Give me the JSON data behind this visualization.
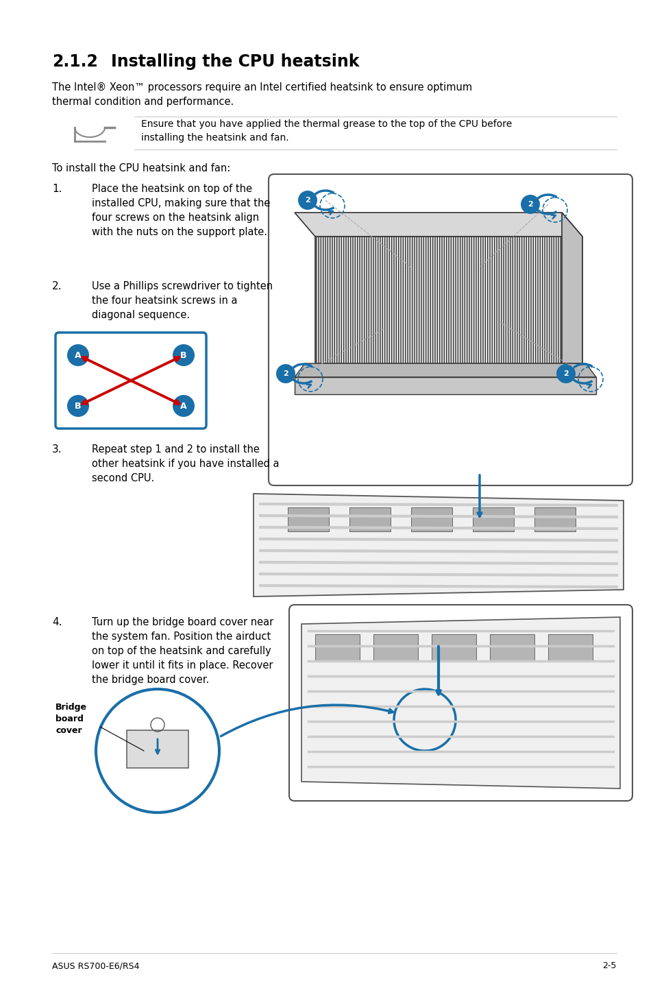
{
  "title_number": "2.1.2",
  "title_text": "Installing the CPU heatsink",
  "intro_text": "The Intel® Xeon™ processors require an Intel certified heatsink to ensure optimum\nthermal condition and performance.",
  "note_text": "Ensure that you have applied the thermal grease to the top of the CPU before\ninstalling the heatsink and fan.",
  "intro2_text": "To install the CPU heatsink and fan:",
  "step1_num": "1.",
  "step1_text": "Place the heatsink on top of the\ninstalled CPU, making sure that the\nfour screws on the heatsink align\nwith the nuts on the support plate.",
  "step2_num": "2.",
  "step2_text": "Use a Phillips screwdriver to tighten\nthe four heatsink screws in a\ndiagonal sequence.",
  "step3_num": "3.",
  "step3_text": "Repeat step 1 and 2 to install the\nother heatsink if you have installed a\nsecond CPU.",
  "step4_num": "4.",
  "step4_text": "Turn up the bridge board cover near\nthe system fan. Position the airduct\non top of the heatsink and carefully\nlower it until it fits in place. Recover\nthe bridge board cover.",
  "bridge_label": "Bridge\nboard\ncover",
  "footer_left": "ASUS RS700-E6/RS4",
  "footer_right": "2-5",
  "bg_color": "#ffffff",
  "text_color": "#000000",
  "blue_color": "#1a6fa8",
  "red_color": "#cc0000"
}
